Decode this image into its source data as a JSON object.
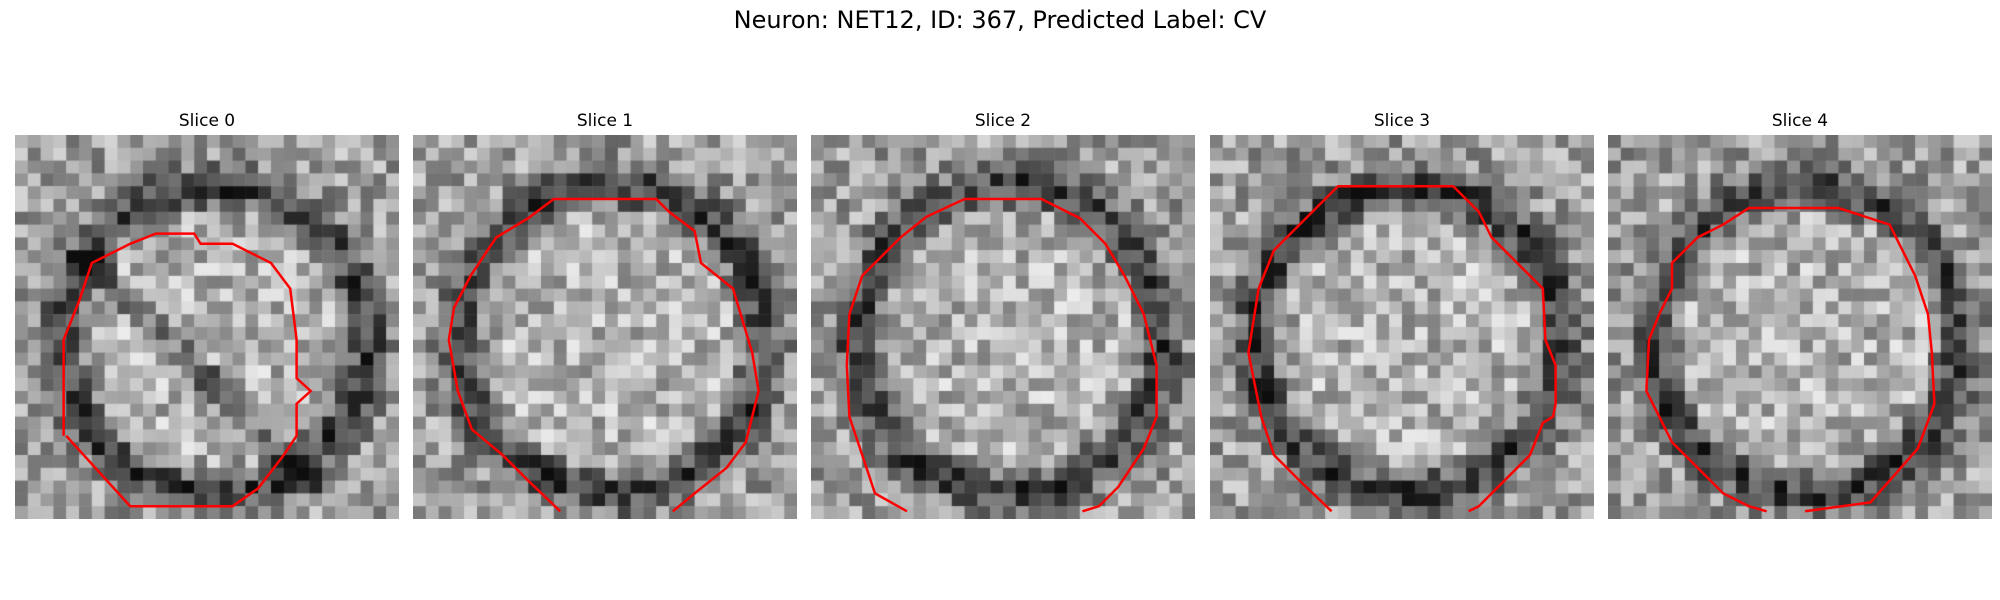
{
  "figure": {
    "title": "Neuron: NET12, ID: 367, Predicted Label: CV",
    "contour_color": "#ff0000",
    "colormap": "grayscale",
    "panels": [
      {
        "title": "Slice 0"
      },
      {
        "title": "Slice 1"
      },
      {
        "title": "Slice 2"
      },
      {
        "title": "Slice 3"
      },
      {
        "title": "Slice 4"
      }
    ]
  }
}
